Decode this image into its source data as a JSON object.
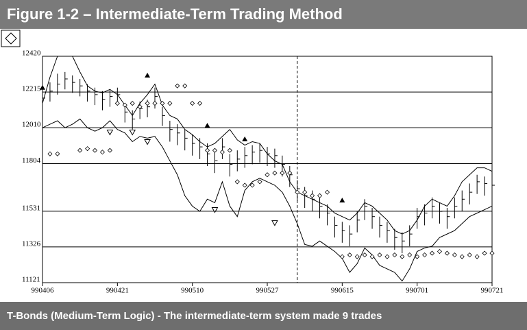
{
  "header": {
    "title": "Figure 1-2 – Intermediate-Term Trading Method"
  },
  "footer": {
    "caption": "T-Bonds (Medium-Term Logic) - The intermediate-term system made 9 trades"
  },
  "chart_data": {
    "type": "hlc",
    "xlim": [
      0,
      60
    ],
    "xticks": [
      {
        "value": 0,
        "label": "990406"
      },
      {
        "value": 10,
        "label": "990421"
      },
      {
        "value": 20,
        "label": "990510"
      },
      {
        "value": 30,
        "label": "990527"
      },
      {
        "value": 40,
        "label": "990615"
      },
      {
        "value": 50,
        "label": "990701"
      },
      {
        "value": 60,
        "label": "990721"
      }
    ],
    "ylim": [
      11121,
      12420
    ],
    "yticks": [
      12420,
      12215,
      12010,
      11804,
      11531,
      11326,
      11121
    ],
    "grid": true,
    "marker_x": 34,
    "color": "#000000",
    "high": [
      12230,
      12270,
      12320,
      12330,
      12310,
      12290,
      12260,
      12240,
      12220,
      12230,
      12240,
      12150,
      12110,
      12160,
      12170,
      12240,
      12130,
      12050,
      12030,
      12000,
      11970,
      11950,
      11920,
      11880,
      11950,
      11860,
      11880,
      11900,
      11910,
      11920,
      11900,
      11890,
      11850,
      11790,
      11710,
      11670,
      11650,
      11610,
      11570,
      11500,
      11470,
      11450,
      11530,
      11600,
      11550,
      11500,
      11470,
      11430,
      11410,
      11450,
      11550,
      11570,
      11610,
      11580,
      11550,
      11610,
      11650,
      11690,
      11740,
      11730,
      11720
    ],
    "low": [
      12130,
      12160,
      12200,
      12230,
      12210,
      12190,
      12160,
      12140,
      12110,
      12130,
      12140,
      12040,
      12000,
      12060,
      12070,
      12120,
      12020,
      11930,
      11910,
      11880,
      11850,
      11830,
      11790,
      11750,
      11830,
      11730,
      11760,
      11780,
      11800,
      11810,
      11790,
      11780,
      11730,
      11670,
      11590,
      11550,
      11530,
      11490,
      11450,
      11380,
      11350,
      11330,
      11410,
      11480,
      11430,
      11380,
      11350,
      11310,
      11290,
      11330,
      11430,
      11450,
      11490,
      11460,
      11430,
      11490,
      11530,
      11570,
      11630,
      11620,
      11610
    ],
    "close": [
      12180,
      12220,
      12260,
      12290,
      12270,
      12250,
      12220,
      12200,
      12170,
      12190,
      12200,
      12100,
      12060,
      12120,
      12130,
      12190,
      12080,
      12000,
      11980,
      11950,
      11920,
      11900,
      11860,
      11820,
      11900,
      11800,
      11830,
      11850,
      11870,
      11880,
      11860,
      11850,
      11800,
      11740,
      11660,
      11620,
      11600,
      11560,
      11520,
      11450,
      11420,
      11400,
      11480,
      11560,
      11500,
      11450,
      11420,
      11380,
      11360,
      11400,
      11500,
      11520,
      11560,
      11530,
      11500,
      11560,
      11600,
      11640,
      11700,
      11690,
      11680
    ],
    "upper": [
      12150,
      12300,
      12420,
      12420,
      12420,
      12330,
      12250,
      12220,
      12210,
      12230,
      12200,
      12140,
      12080,
      12150,
      12200,
      12260,
      12140,
      12080,
      12060,
      12000,
      11970,
      11930,
      11900,
      11920,
      11960,
      12000,
      11940,
      11910,
      11930,
      11920,
      11860,
      11820,
      11800,
      11700,
      11640,
      11620,
      11600,
      11580,
      11560,
      11520,
      11500,
      11480,
      11520,
      11580,
      11560,
      11520,
      11480,
      11420,
      11400,
      11420,
      11480,
      11560,
      11600,
      11580,
      11560,
      11620,
      11700,
      11740,
      11780,
      11780,
      11760
    ],
    "lower": [
      12010,
      12030,
      12050,
      12010,
      12030,
      12060,
      12010,
      11990,
      12010,
      12050,
      12000,
      11980,
      11930,
      11960,
      11950,
      11960,
      11900,
      11820,
      11740,
      11620,
      11560,
      11530,
      11600,
      11580,
      11700,
      11560,
      11500,
      11650,
      11700,
      11720,
      11700,
      11680,
      11640,
      11560,
      11460,
      11340,
      11330,
      11360,
      11330,
      11300,
      11260,
      11180,
      11230,
      11320,
      11280,
      11220,
      11200,
      11180,
      11130,
      11200,
      11300,
      11320,
      11330,
      11380,
      11400,
      11420,
      11460,
      11500,
      11520,
      11540,
      11560
    ],
    "stops": [
      null,
      11860,
      11860,
      null,
      null,
      11880,
      11890,
      11880,
      11870,
      11880,
      12150,
      12140,
      12150,
      12130,
      12150,
      12150,
      12150,
      12150,
      12250,
      12250,
      12150,
      12150,
      11880,
      11880,
      11870,
      11880,
      11700,
      11680,
      11680,
      11700,
      11740,
      11750,
      11750,
      11750,
      11640,
      11640,
      11620,
      11620,
      11640,
      null,
      11270,
      11280,
      11270,
      11280,
      11270,
      11280,
      11270,
      11280,
      11270,
      11280,
      11270,
      11280,
      11290,
      11300,
      11290,
      11280,
      11270,
      11280,
      11270,
      11290,
      11290
    ],
    "buy": {
      "x": [
        0,
        14,
        22,
        27,
        40
      ],
      "values": [
        12240,
        12310,
        12022,
        11944,
        11593
      ]
    },
    "sell": {
      "x": [
        9,
        12,
        14,
        23,
        31
      ],
      "values": [
        11985,
        11985,
        11930,
        11540,
        11465
      ]
    }
  }
}
